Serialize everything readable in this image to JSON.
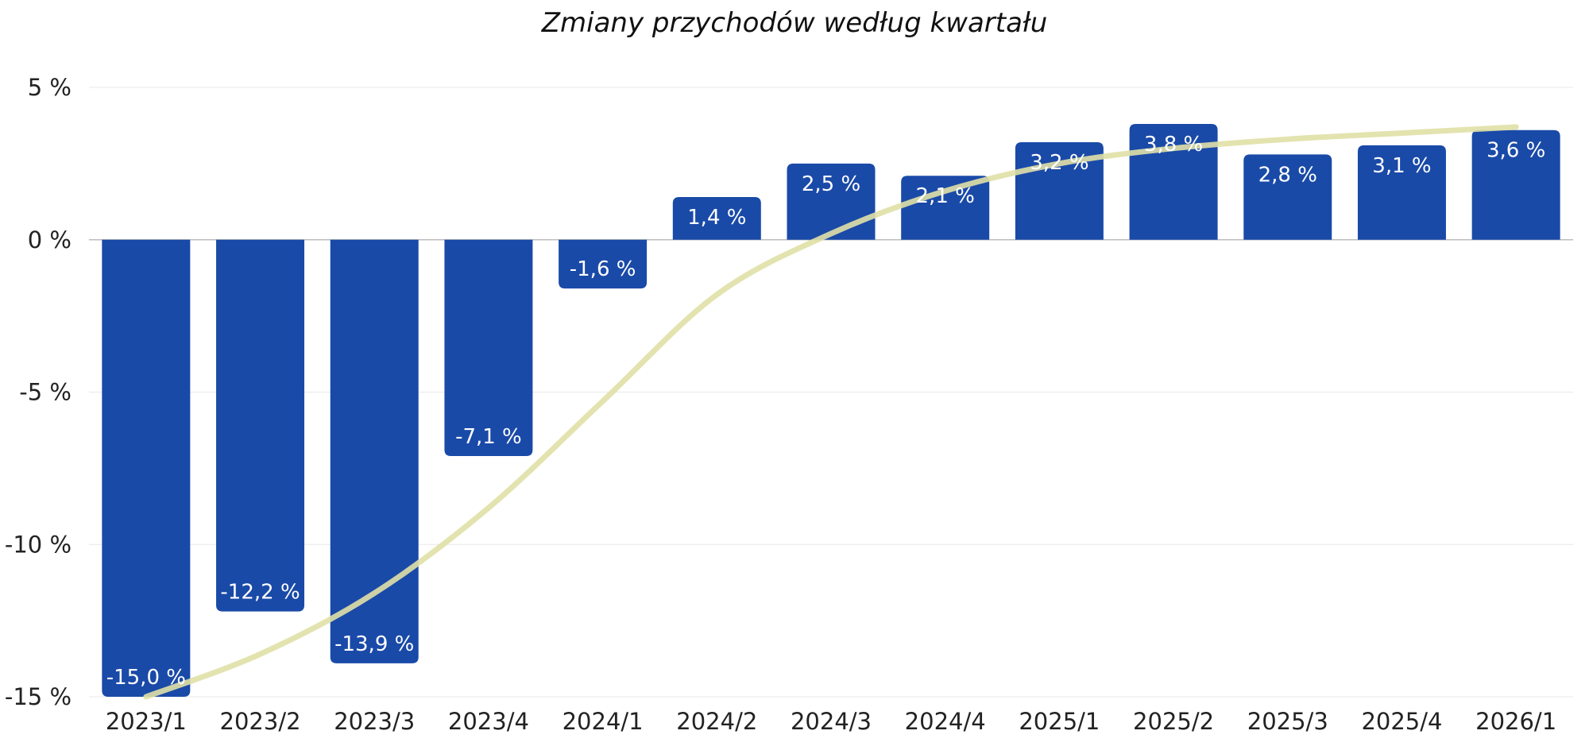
{
  "chart_data": {
    "type": "bar",
    "title": "Zmiany przychodów według kwartału",
    "xlabel": "",
    "ylabel": "",
    "categories": [
      "2023/1",
      "2023/2",
      "2023/3",
      "2023/4",
      "2024/1",
      "2024/2",
      "2024/3",
      "2024/4",
      "2025/1",
      "2025/2",
      "2025/3",
      "2025/4",
      "2026/1"
    ],
    "series": [
      {
        "values": [
          -15.0,
          -12.2,
          -13.9,
          -7.1,
          -1.6,
          1.4,
          2.5,
          2.1,
          3.2,
          3.8,
          2.8,
          3.1,
          3.6
        ],
        "data_labels": [
          "-15,0 %",
          "-12,2 %",
          "-13,9 %",
          "-7,1 %",
          "-1,6 %",
          "1,4 %",
          "2,5 %",
          "2,1 %",
          "3,2 %",
          "3,8 %",
          "2,8 %",
          "3,1 %",
          "3,6 %"
        ],
        "color": "#1a4aa8"
      }
    ],
    "trend": {
      "type": "smooth-line",
      "color": "#e0e0a6",
      "points": [
        [
          0,
          -15.0
        ],
        [
          1,
          -13.6
        ],
        [
          2,
          -11.6
        ],
        [
          3,
          -8.8
        ],
        [
          4,
          -5.3
        ],
        [
          5,
          -1.8
        ],
        [
          6,
          0.2
        ],
        [
          7,
          1.6
        ],
        [
          8,
          2.5
        ],
        [
          9,
          3.0
        ],
        [
          10,
          3.3
        ],
        [
          11,
          3.5
        ],
        [
          12,
          3.7
        ]
      ]
    },
    "ylim": [
      -15,
      5
    ],
    "yticks": [
      5,
      0,
      -5,
      -10,
      -15
    ],
    "ytick_labels": [
      "5 %",
      "0 %",
      "-5 %",
      "-10 %",
      "-15 %"
    ],
    "grid": true,
    "legend": "none"
  }
}
